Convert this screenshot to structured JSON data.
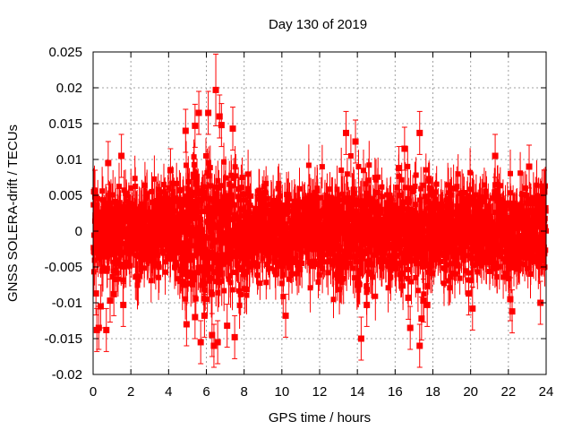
{
  "chart_data": {
    "type": "scatter",
    "title": "Day 130 of 2019",
    "xlabel": "GPS time / hours",
    "ylabel": "GNSS SOLERA-drift / TECUs",
    "xlim": [
      0,
      24
    ],
    "ylim": [
      -0.02,
      0.025
    ],
    "xticks": [
      0,
      2,
      4,
      6,
      8,
      10,
      12,
      14,
      16,
      18,
      20,
      22,
      24
    ],
    "xtick_labels": [
      "0",
      "2",
      "4",
      "6",
      "8",
      "10",
      "12",
      "14",
      "16",
      "18",
      "20",
      "22",
      "24"
    ],
    "yticks": [
      -0.02,
      -0.015,
      -0.01,
      -0.005,
      0,
      0.005,
      0.01,
      0.015,
      0.02,
      0.025
    ],
    "ytick_labels": [
      "-0.02",
      "-0.015",
      "-0.01",
      "-0.005",
      "0",
      "0.005",
      "0.01",
      "0.015",
      "0.02",
      "0.025"
    ],
    "grid": true,
    "series": [
      {
        "name": "SOLERA drift",
        "color": "#ff0000",
        "marker": "square",
        "error_bars": true,
        "description": "Dense cloud of several thousand drift estimates with error bars, mostly within ±0.007 TECU; outliers listed in points",
        "points": [
          {
            "x": 0.1,
            "y": 0.0055,
            "err": 0.003
          },
          {
            "x": 0.15,
            "y": -0.0087,
            "err": 0.003
          },
          {
            "x": 0.2,
            "y": -0.0138,
            "err": 0.003
          },
          {
            "x": 0.3,
            "y": -0.0135,
            "err": 0.003
          },
          {
            "x": 0.4,
            "y": -0.0105,
            "err": 0.003
          },
          {
            "x": 0.7,
            "y": -0.0138,
            "err": 0.003
          },
          {
            "x": 0.8,
            "y": 0.0095,
            "err": 0.003
          },
          {
            "x": 0.9,
            "y": -0.0097,
            "err": 0.003
          },
          {
            "x": 1.1,
            "y": -0.0088,
            "err": 0.003
          },
          {
            "x": 1.5,
            "y": 0.0105,
            "err": 0.003
          },
          {
            "x": 1.6,
            "y": -0.0103,
            "err": 0.003
          },
          {
            "x": 4.1,
            "y": 0.0085,
            "err": 0.003
          },
          {
            "x": 4.9,
            "y": 0.014,
            "err": 0.003
          },
          {
            "x": 4.95,
            "y": -0.013,
            "err": 0.003
          },
          {
            "x": 5.4,
            "y": 0.0147,
            "err": 0.003
          },
          {
            "x": 5.4,
            "y": -0.012,
            "err": 0.003
          },
          {
            "x": 5.6,
            "y": 0.0165,
            "err": 0.003
          },
          {
            "x": 5.7,
            "y": -0.0155,
            "err": 0.003
          },
          {
            "x": 5.9,
            "y": -0.0118,
            "err": 0.003
          },
          {
            "x": 6.1,
            "y": 0.0165,
            "err": 0.003
          },
          {
            "x": 6.3,
            "y": -0.0145,
            "err": 0.003
          },
          {
            "x": 6.4,
            "y": -0.016,
            "err": 0.003
          },
          {
            "x": 6.5,
            "y": 0.0197,
            "err": 0.005
          },
          {
            "x": 6.6,
            "y": -0.0155,
            "err": 0.003
          },
          {
            "x": 6.7,
            "y": 0.016,
            "err": 0.003
          },
          {
            "x": 6.8,
            "y": 0.0148,
            "err": 0.003
          },
          {
            "x": 7.1,
            "y": -0.0132,
            "err": 0.003
          },
          {
            "x": 7.4,
            "y": 0.0143,
            "err": 0.003
          },
          {
            "x": 7.5,
            "y": -0.0148,
            "err": 0.003
          },
          {
            "x": 10.2,
            "y": -0.0118,
            "err": 0.003
          },
          {
            "x": 13.4,
            "y": 0.0137,
            "err": 0.003
          },
          {
            "x": 13.9,
            "y": 0.0125,
            "err": 0.003
          },
          {
            "x": 14.2,
            "y": -0.015,
            "err": 0.003
          },
          {
            "x": 14.5,
            "y": -0.0103,
            "err": 0.003
          },
          {
            "x": 16.2,
            "y": 0.0088,
            "err": 0.003
          },
          {
            "x": 16.5,
            "y": 0.0115,
            "err": 0.003
          },
          {
            "x": 16.7,
            "y": -0.0093,
            "err": 0.003
          },
          {
            "x": 16.8,
            "y": -0.0135,
            "err": 0.003
          },
          {
            "x": 17.3,
            "y": 0.0137,
            "err": 0.003
          },
          {
            "x": 17.3,
            "y": -0.016,
            "err": 0.003
          },
          {
            "x": 17.4,
            "y": -0.0122,
            "err": 0.003
          },
          {
            "x": 17.5,
            "y": -0.0097,
            "err": 0.003
          },
          {
            "x": 17.7,
            "y": -0.0103,
            "err": 0.003
          },
          {
            "x": 19.9,
            "y": -0.0087,
            "err": 0.003
          },
          {
            "x": 20.1,
            "y": -0.0108,
            "err": 0.003
          },
          {
            "x": 21.3,
            "y": 0.0105,
            "err": 0.003
          },
          {
            "x": 22.1,
            "y": -0.0095,
            "err": 0.003
          },
          {
            "x": 22.2,
            "y": -0.0112,
            "err": 0.003
          },
          {
            "x": 23.1,
            "y": 0.009,
            "err": 0.003
          },
          {
            "x": 23.7,
            "y": -0.01,
            "err": 0.003
          },
          {
            "x": 23.9,
            "y": 0.0055,
            "err": 0.003
          }
        ]
      }
    ]
  }
}
